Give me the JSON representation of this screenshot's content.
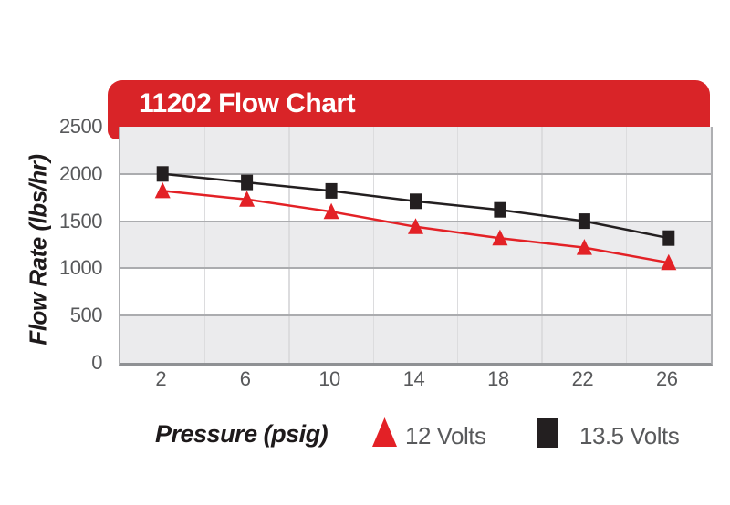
{
  "chart_data": {
    "type": "line",
    "title": "11202 Flow Chart",
    "xlabel": "Pressure (psig)",
    "ylabel": "Flow Rate (lbs/hr)",
    "categories": [
      2,
      6,
      10,
      14,
      18,
      22,
      26
    ],
    "yticks": [
      2500,
      2000,
      1500,
      1000,
      500,
      0
    ],
    "ylim": [
      0,
      2500
    ],
    "grid": "horizontal gridlines with alternating gray/white bands and faint vertical category separators",
    "legend_position": "bottom",
    "series": [
      {
        "name": "12 Volts",
        "marker": "triangle",
        "color": "#e32126",
        "values": [
          1820,
          1730,
          1600,
          1440,
          1320,
          1220,
          1060
        ]
      },
      {
        "name": "13.5 Volts",
        "marker": "square",
        "color": "#231f20",
        "values": [
          2000,
          1910,
          1820,
          1710,
          1620,
          1500,
          1320
        ]
      }
    ]
  },
  "colors": {
    "banner_red": "#d92428",
    "series_red": "#e32126",
    "series_black": "#231f20",
    "band_gray": "#ebebed",
    "band_white": "#ffffff",
    "hgridline": "#abacaf",
    "vgridline": "#dcdcde",
    "plot_border": "#aeafb2",
    "tick_text": "#58595b",
    "axis_title_text": "#1e1a1b",
    "banner_title_text": "#ffffff"
  }
}
